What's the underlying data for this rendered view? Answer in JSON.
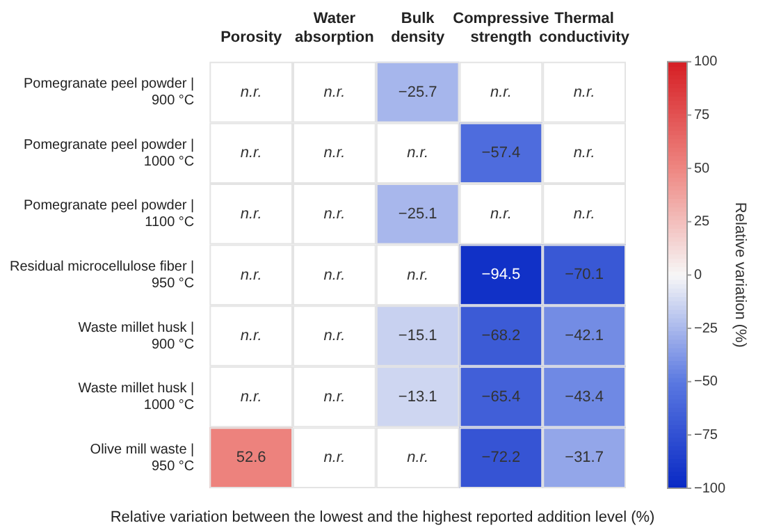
{
  "chart_data": {
    "type": "heatmap",
    "xlabel": "Relative variation between the lowest and the highest reported addition level (%)",
    "clabel": "Relative variation (%)",
    "categories": [
      "Porosity",
      "Water absorption",
      "Bulk density",
      "Compressive strength",
      "Thermal conductivity"
    ],
    "y_categories": [
      "Pomegranate peel powder | 900 °C",
      "Pomegranate peel powder | 1000 °C",
      "Pomegranate peel powder | 1100 °C",
      "Residual microcellulose fiber | 950 °C",
      "Waste millet husk | 900 °C",
      "Waste millet husk | 1000 °C",
      "Olive mill waste | 950 °C"
    ],
    "cells": [
      [
        null,
        null,
        -25.7,
        null,
        null
      ],
      [
        null,
        null,
        null,
        -57.4,
        null
      ],
      [
        null,
        null,
        -25.1,
        null,
        null
      ],
      [
        null,
        null,
        null,
        -94.5,
        -70.1
      ],
      [
        null,
        null,
        -15.1,
        -68.2,
        -42.1
      ],
      [
        null,
        null,
        -13.1,
        -65.4,
        -43.4
      ],
      [
        52.6,
        null,
        null,
        -72.2,
        -31.7
      ]
    ],
    "cell_labels": [
      [
        "n.r.",
        "n.r.",
        "−25.7",
        "n.r.",
        "n.r."
      ],
      [
        "n.r.",
        "n.r.",
        "n.r.",
        "−57.4",
        "n.r."
      ],
      [
        "n.r.",
        "n.r.",
        "−25.1",
        "n.r.",
        "n.r."
      ],
      [
        "n.r.",
        "n.r.",
        "n.r.",
        "−94.5",
        "−70.1"
      ],
      [
        "n.r.",
        "n.r.",
        "−15.1",
        "−68.2",
        "−42.1"
      ],
      [
        "n.r.",
        "n.r.",
        "−13.1",
        "−65.4",
        "−43.4"
      ],
      [
        "52.6",
        "n.r.",
        "n.r.",
        "−72.2",
        "−31.7"
      ]
    ],
    "clim": [
      -100,
      100
    ],
    "cticks": [
      -100,
      -75,
      -50,
      -25,
      0,
      25,
      50,
      75,
      100
    ]
  }
}
